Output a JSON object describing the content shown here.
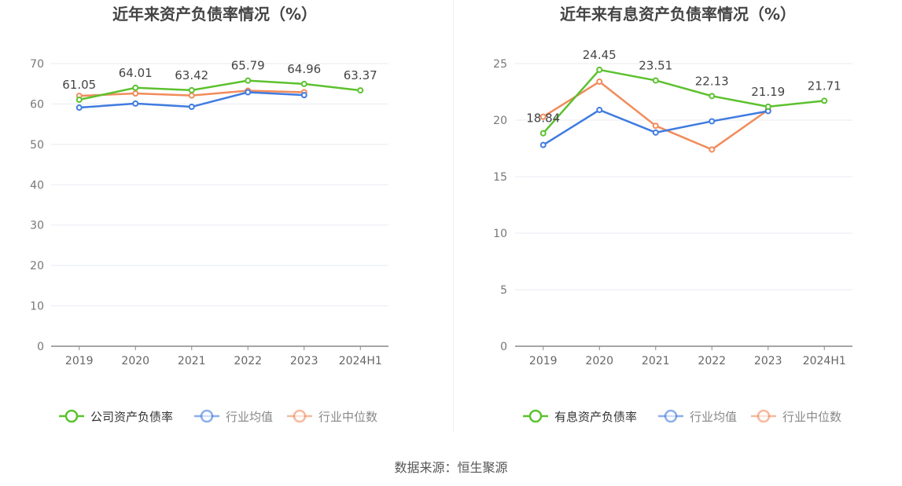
{
  "source": "数据来源：恒生聚源",
  "chart_data": [
    {
      "type": "line",
      "title": "近年来资产负债率情况（%）",
      "categories": [
        "2019",
        "2020",
        "2021",
        "2022",
        "2023",
        "2024H1"
      ],
      "ylim": [
        0,
        70
      ],
      "yticks": [
        0,
        10,
        20,
        30,
        40,
        50,
        60,
        70
      ],
      "grid": true,
      "legend_position": "bottom",
      "series": [
        {
          "name": "公司资产负债率",
          "color": "#5cc12e",
          "values": [
            61.05,
            64.01,
            63.42,
            65.79,
            64.96,
            63.37
          ],
          "labels": [
            "61.05",
            "64.01",
            "63.42",
            "65.79",
            "64.96",
            "63.37"
          ]
        },
        {
          "name": "行业均值",
          "color": "#3f7be0",
          "values": [
            59.1,
            60.1,
            59.3,
            62.9,
            62.2,
            null
          ]
        },
        {
          "name": "行业中位数",
          "color": "#f28b5b",
          "values": [
            62.0,
            62.6,
            62.1,
            63.3,
            62.9,
            null
          ]
        }
      ]
    },
    {
      "type": "line",
      "title": "近年来有息资产负债率情况（%）",
      "categories": [
        "2019",
        "2020",
        "2021",
        "2022",
        "2023",
        "2024H1"
      ],
      "ylim": [
        0,
        25
      ],
      "yticks": [
        0,
        5,
        10,
        15,
        20,
        25
      ],
      "grid": true,
      "legend_position": "bottom",
      "series": [
        {
          "name": "有息资产负债率",
          "color": "#5cc12e",
          "values": [
            18.84,
            24.45,
            23.51,
            22.13,
            21.19,
            21.71
          ],
          "labels": [
            "18.84",
            "24.45",
            "23.51",
            "22.13",
            "21.19",
            "21.71"
          ]
        },
        {
          "name": "行业均值",
          "color": "#3f7be0",
          "values": [
            17.8,
            20.9,
            18.9,
            19.9,
            20.8,
            null
          ]
        },
        {
          "name": "行业中位数",
          "color": "#f28b5b",
          "values": [
            20.3,
            23.4,
            19.5,
            17.4,
            20.9,
            null
          ]
        }
      ]
    }
  ]
}
